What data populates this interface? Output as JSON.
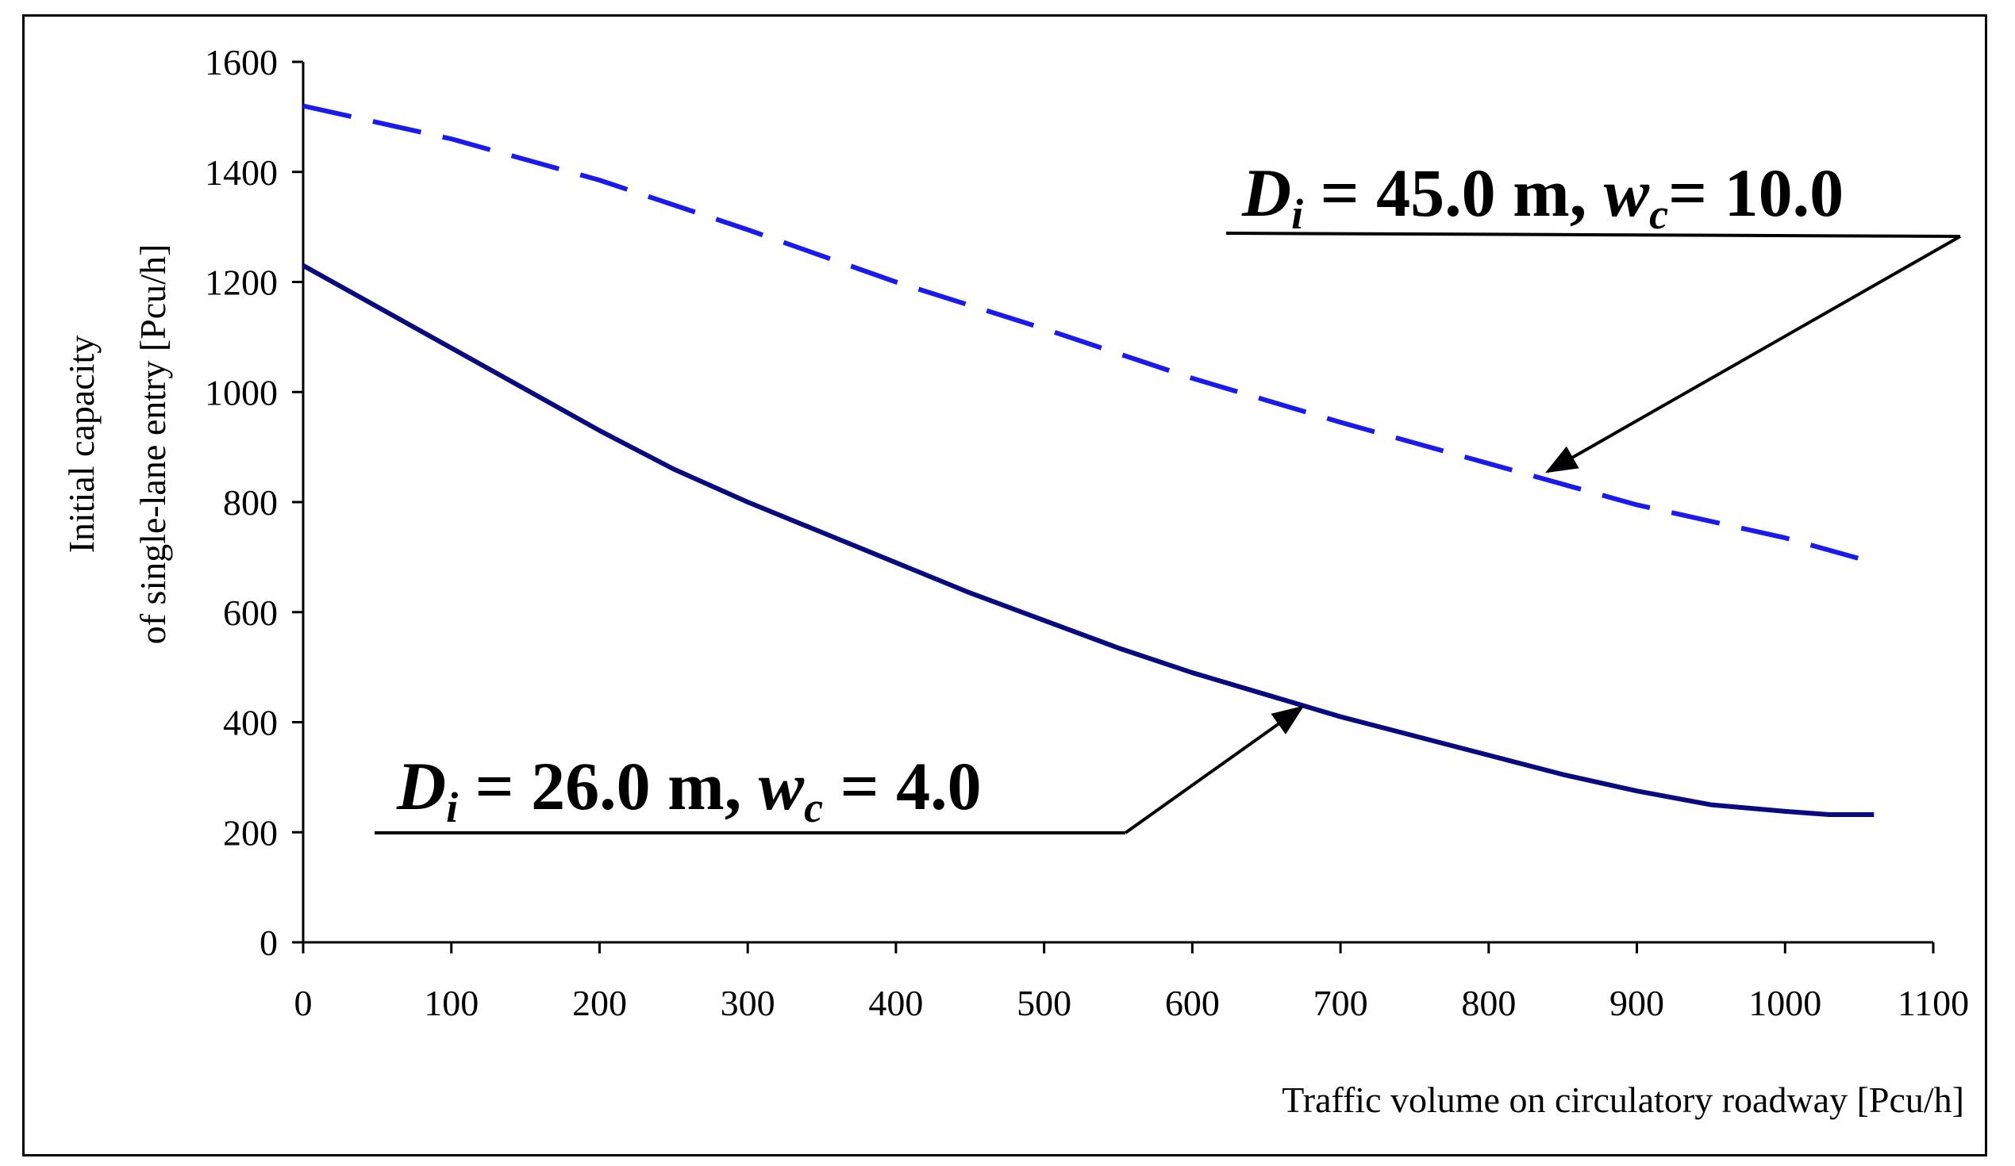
{
  "chart_data": {
    "type": "line",
    "title": "",
    "xlabel": "Traffic volume on circulatory roadway [Pcu/h]",
    "ylabel_lines": [
      "Initial capacity",
      "of single-lane entry [Pcu/h]"
    ],
    "xlim": [
      0,
      1100
    ],
    "ylim": [
      0,
      1600
    ],
    "x_ticks": [
      0,
      100,
      200,
      300,
      400,
      500,
      600,
      700,
      800,
      900,
      1000,
      1100
    ],
    "y_ticks": [
      0,
      200,
      400,
      600,
      800,
      1000,
      1200,
      1400,
      1600
    ],
    "grid": false,
    "series": [
      {
        "name": "Di = 45.0 m, wc = 10.0",
        "style": "dashed",
        "color": "#1a1aee",
        "x": [
          0,
          100,
          200,
          300,
          400,
          500,
          600,
          700,
          800,
          900,
          1000,
          1060
        ],
        "y": [
          1520,
          1460,
          1385,
          1295,
          1200,
          1115,
          1025,
          945,
          870,
          795,
          735,
          690
        ]
      },
      {
        "name": "Di = 26.0 m, wc = 4.0",
        "style": "solid",
        "color": "#0a0a80",
        "x": [
          0,
          50,
          100,
          150,
          200,
          250,
          300,
          350,
          400,
          450,
          500,
          550,
          600,
          650,
          700,
          750,
          800,
          850,
          900,
          950,
          1000,
          1030,
          1060
        ],
        "y": [
          1230,
          1155,
          1080,
          1005,
          930,
          860,
          800,
          745,
          690,
          635,
          585,
          535,
          490,
          450,
          410,
          375,
          340,
          305,
          275,
          250,
          238,
          232,
          232
        ]
      }
    ],
    "annotations": [
      {
        "name": "upper-label",
        "label_main_1": "D",
        "label_sub_1": "i",
        "label_mid_1": " = ",
        "label_value_1": "45.0",
        "label_unit": " m, ",
        "label_main_2": "w",
        "label_sub_2": "c",
        "label_mid_2": "= ",
        "label_value_2": "10.0",
        "arrow_target": [
          840,
          850
        ]
      },
      {
        "name": "lower-label",
        "label_main_1": "D",
        "label_sub_1": "i",
        "label_mid_1": " = ",
        "label_value_1": "26.0",
        "label_unit": " m, ",
        "label_main_2": "w",
        "label_sub_2": "c",
        "label_mid_2": " = ",
        "label_value_2": "4.0",
        "arrow_target": [
          680,
          430
        ]
      }
    ]
  }
}
